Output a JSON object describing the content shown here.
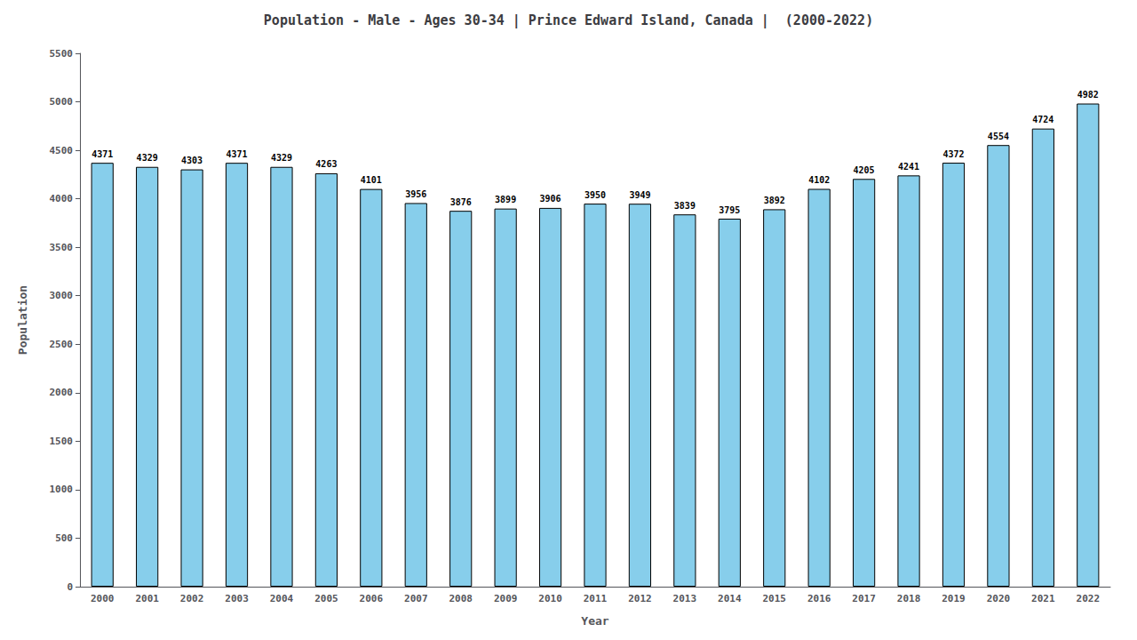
{
  "chart_data": {
    "type": "bar",
    "title": "Population - Male - Ages 30-34 | Prince Edward Island, Canada |  (2000-2022)",
    "x_label": "Year",
    "y_label": "Population",
    "categories": [
      "2000",
      "2001",
      "2002",
      "2003",
      "2004",
      "2005",
      "2006",
      "2007",
      "2008",
      "2009",
      "2010",
      "2011",
      "2012",
      "2013",
      "2014",
      "2015",
      "2016",
      "2017",
      "2018",
      "2019",
      "2020",
      "2021",
      "2022"
    ],
    "values": [
      4371,
      4329,
      4303,
      4371,
      4329,
      4263,
      4101,
      3956,
      3876,
      3899,
      3906,
      3950,
      3949,
      3839,
      3795,
      3892,
      4102,
      4205,
      4241,
      4372,
      4554,
      4724,
      4982
    ],
    "color": "#87CEEB",
    "ylim": [
      0,
      5500
    ],
    "yticks": [
      0,
      500,
      1000,
      1500,
      2000,
      2500,
      3000,
      3500,
      4000,
      4500,
      5000,
      5500
    ],
    "grid": false,
    "data_labels": true
  }
}
